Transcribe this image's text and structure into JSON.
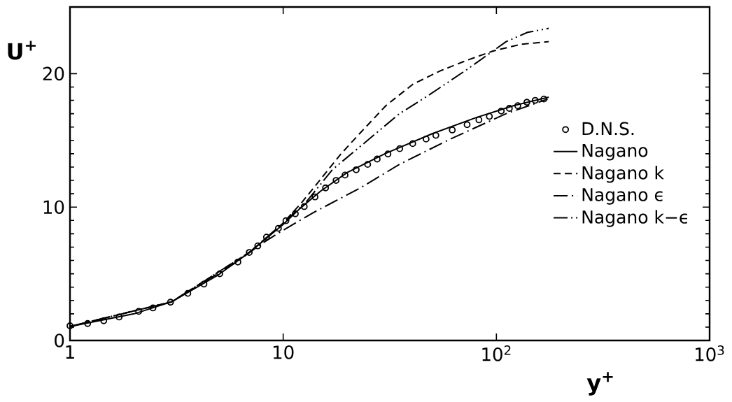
{
  "chart_data": {
    "type": "line",
    "xlabel": "y$^{+}$",
    "ylabel": "U$^{+}$",
    "log": "x",
    "xlim": [
      1,
      1000
    ],
    "xticks": [
      {
        "value": 1,
        "label": "1"
      },
      {
        "value": 10,
        "label": "10"
      },
      {
        "value": 100,
        "label": "10$^{2}$"
      },
      {
        "value": 1000,
        "label": "10$^{3}$"
      }
    ],
    "ylim": [
      0,
      25
    ],
    "yticks": [
      0,
      10,
      20
    ],
    "grid": false,
    "legend": "right",
    "series": [
      {
        "name": "D.N.S.",
        "type": "scatter",
        "color": "#000000",
        "marker": "circle",
        "x": [
          1,
          1.21,
          1.44,
          1.7,
          2.1,
          2.45,
          2.96,
          3.57,
          4.25,
          5.04,
          6.13,
          6.93,
          7.6,
          8.35,
          9.5,
          10.3,
          11.4,
          12.55,
          14.1,
          15.8,
          17.7,
          19.5,
          22,
          24.9,
          27.6,
          31,
          35.2,
          40.5,
          46.8,
          52,
          62.1,
          72.9,
          82.8,
          92.7,
          105.4,
          115,
          126,
          139,
          152,
          167
        ],
        "values": [
          1.1,
          1.27,
          1.48,
          1.76,
          2.18,
          2.44,
          2.87,
          3.53,
          4.23,
          5.0,
          5.88,
          6.6,
          7.09,
          7.75,
          8.41,
          8.98,
          9.5,
          10.04,
          10.76,
          11.44,
          12.0,
          12.4,
          12.8,
          13.2,
          13.6,
          13.98,
          14.38,
          14.76,
          15.1,
          15.38,
          15.78,
          16.18,
          16.54,
          16.8,
          17.2,
          17.4,
          17.6,
          17.86,
          18.0,
          18.1
        ]
      },
      {
        "name": "Nagano",
        "color": "#000000",
        "marker": "none",
        "line_style": "solid",
        "x": [
          1,
          2,
          3,
          5,
          7,
          9,
          10,
          12,
          15,
          20,
          30,
          50,
          80,
          120,
          176
        ],
        "values": [
          1.05,
          2.0,
          2.9,
          4.95,
          6.65,
          8.1,
          8.7,
          9.9,
          11.2,
          12.6,
          14.0,
          15.5,
          16.7,
          17.6,
          18.24
        ]
      },
      {
        "name": "Nagano  k",
        "color": "#000000",
        "marker": "none",
        "line_style": "dashed",
        "x": [
          1,
          3,
          7,
          10,
          12.3,
          15,
          18.7,
          22.8,
          30.3,
          40.5,
          54.3,
          72.6,
          96.5,
          130,
          176
        ],
        "values": [
          1.05,
          2.9,
          6.65,
          8.8,
          10.4,
          12.1,
          14.0,
          15.5,
          17.6,
          19.2,
          20.2,
          21.0,
          21.7,
          22.2,
          22.4
        ]
      },
      {
        "name": "Nagano  ϵ",
        "color": "#000000",
        "marker": "none",
        "line_style": "dashdot",
        "x": [
          1,
          3,
          6,
          8,
          9.6,
          13.9,
          22.8,
          35.1,
          60.8,
          111,
          174
        ],
        "values": [
          1.05,
          2.9,
          5.85,
          7.3,
          8.1,
          9.6,
          11.4,
          13.2,
          15.1,
          17.0,
          18.1
        ]
      },
      {
        "name": "Nagano k−ϵ",
        "color": "#000000",
        "marker": "none",
        "line_style": "dashdotdot",
        "x": [
          1,
          3,
          7,
          10,
          13,
          17,
          22.8,
          35.1,
          48.3,
          72.6,
          111,
          140,
          176
        ],
        "values": [
          1.05,
          2.9,
          6.65,
          8.8,
          10.5,
          12.8,
          14.5,
          17.0,
          18.4,
          20.3,
          22.4,
          23.1,
          23.4
        ]
      }
    ]
  }
}
